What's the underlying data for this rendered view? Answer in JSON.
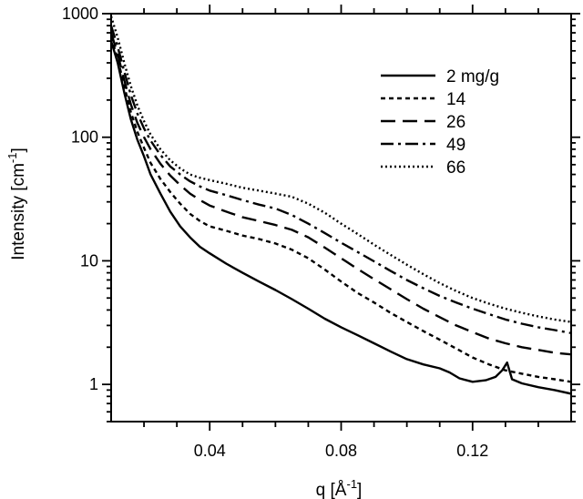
{
  "chart_data": {
    "type": "line",
    "xlabel": "q [Å",
    "xlabel_sup": "-1",
    "xlabel_close": "]",
    "ylabel": "Intensity [cm",
    "ylabel_sup": "-1",
    "ylabel_close": "]",
    "xlim": [
      0.01,
      0.15
    ],
    "ylim": [
      0.5,
      1000
    ],
    "yscale": "log",
    "x_ticks": [
      0.04,
      0.08,
      0.12
    ],
    "x_tick_labels": [
      "0.04",
      "0.08",
      "0.12"
    ],
    "y_ticks": [
      1,
      10,
      100,
      1000
    ],
    "y_tick_labels": [
      "1",
      "10",
      "100",
      "1000"
    ],
    "grid": false,
    "legend_position": "top-right",
    "series": [
      {
        "name": "2 mg/g",
        "dash": "solid",
        "x": [
          0.01,
          0.012,
          0.014,
          0.016,
          0.018,
          0.02,
          0.022,
          0.025,
          0.028,
          0.031,
          0.034,
          0.037,
          0.04,
          0.045,
          0.05,
          0.055,
          0.06,
          0.065,
          0.07,
          0.075,
          0.08,
          0.085,
          0.09,
          0.095,
          0.1,
          0.105,
          0.11,
          0.113,
          0.116,
          0.12,
          0.124,
          0.127,
          0.129,
          0.1305,
          0.132,
          0.135,
          0.14,
          0.145,
          0.15
        ],
        "values": [
          600,
          400,
          230,
          140,
          95,
          70,
          50,
          35,
          25,
          19,
          15.5,
          13,
          11.5,
          9.5,
          8,
          6.8,
          5.8,
          4.9,
          4.1,
          3.4,
          2.9,
          2.5,
          2.15,
          1.85,
          1.6,
          1.45,
          1.35,
          1.25,
          1.12,
          1.05,
          1.08,
          1.15,
          1.3,
          1.5,
          1.1,
          1.02,
          0.95,
          0.9,
          0.84
        ]
      },
      {
        "name": "14",
        "dash": "short-dash",
        "x": [
          0.01,
          0.012,
          0.014,
          0.016,
          0.018,
          0.02,
          0.022,
          0.025,
          0.028,
          0.031,
          0.034,
          0.037,
          0.04,
          0.045,
          0.05,
          0.055,
          0.06,
          0.065,
          0.07,
          0.075,
          0.08,
          0.085,
          0.09,
          0.095,
          0.1,
          0.105,
          0.11,
          0.115,
          0.12,
          0.125,
          0.13,
          0.135,
          0.14,
          0.145,
          0.15
        ],
        "values": [
          650,
          430,
          260,
          160,
          110,
          82,
          62,
          46,
          36,
          29,
          24,
          21,
          19,
          17.5,
          16,
          15,
          13.8,
          12.3,
          10.5,
          8.5,
          6.8,
          5.5,
          4.6,
          3.8,
          3.2,
          2.7,
          2.3,
          1.95,
          1.65,
          1.45,
          1.3,
          1.22,
          1.15,
          1.1,
          1.05
        ]
      },
      {
        "name": "26",
        "dash": "long-dash",
        "x": [
          0.01,
          0.012,
          0.014,
          0.016,
          0.018,
          0.02,
          0.022,
          0.025,
          0.028,
          0.031,
          0.034,
          0.037,
          0.04,
          0.045,
          0.05,
          0.055,
          0.06,
          0.065,
          0.07,
          0.075,
          0.08,
          0.085,
          0.09,
          0.095,
          0.1,
          0.105,
          0.11,
          0.115,
          0.12,
          0.125,
          0.13,
          0.135,
          0.14,
          0.145,
          0.15
        ],
        "values": [
          700,
          470,
          290,
          185,
          130,
          100,
          80,
          61,
          49,
          41,
          35,
          31,
          28,
          25,
          22.5,
          21,
          19.5,
          17.8,
          15.5,
          12.8,
          10.5,
          8.6,
          7.1,
          5.9,
          4.9,
          4.1,
          3.5,
          3,
          2.65,
          2.35,
          2.15,
          2,
          1.9,
          1.8,
          1.75
        ]
      },
      {
        "name": "49",
        "dash": "dash-dot",
        "x": [
          0.01,
          0.012,
          0.014,
          0.016,
          0.018,
          0.02,
          0.022,
          0.025,
          0.028,
          0.031,
          0.034,
          0.037,
          0.04,
          0.045,
          0.05,
          0.055,
          0.06,
          0.065,
          0.07,
          0.075,
          0.08,
          0.085,
          0.09,
          0.095,
          0.1,
          0.105,
          0.11,
          0.115,
          0.12,
          0.125,
          0.13,
          0.135,
          0.14,
          0.145,
          0.15
        ],
        "values": [
          800,
          540,
          340,
          220,
          155,
          118,
          94,
          72,
          58,
          50,
          44,
          40,
          37,
          34,
          31,
          28.5,
          26.5,
          23.5,
          20,
          16.8,
          14,
          11.8,
          9.9,
          8.3,
          7,
          6,
          5.2,
          4.6,
          4.1,
          3.7,
          3.35,
          3.1,
          2.9,
          2.75,
          2.6
        ]
      },
      {
        "name": "66",
        "dash": "dotted",
        "x": [
          0.01,
          0.012,
          0.014,
          0.016,
          0.018,
          0.02,
          0.022,
          0.025,
          0.028,
          0.031,
          0.034,
          0.037,
          0.04,
          0.045,
          0.05,
          0.055,
          0.06,
          0.065,
          0.07,
          0.075,
          0.08,
          0.085,
          0.09,
          0.095,
          0.1,
          0.105,
          0.11,
          0.115,
          0.12,
          0.125,
          0.13,
          0.135,
          0.14,
          0.145,
          0.15
        ],
        "values": [
          950,
          640,
          400,
          260,
          180,
          135,
          105,
          80,
          65,
          56,
          50,
          47,
          45,
          42,
          39,
          37,
          35,
          33,
          29,
          24.5,
          20,
          16.5,
          13.5,
          11.2,
          9.3,
          7.8,
          6.6,
          5.7,
          5,
          4.5,
          4.1,
          3.8,
          3.55,
          3.35,
          3.2
        ]
      }
    ]
  }
}
